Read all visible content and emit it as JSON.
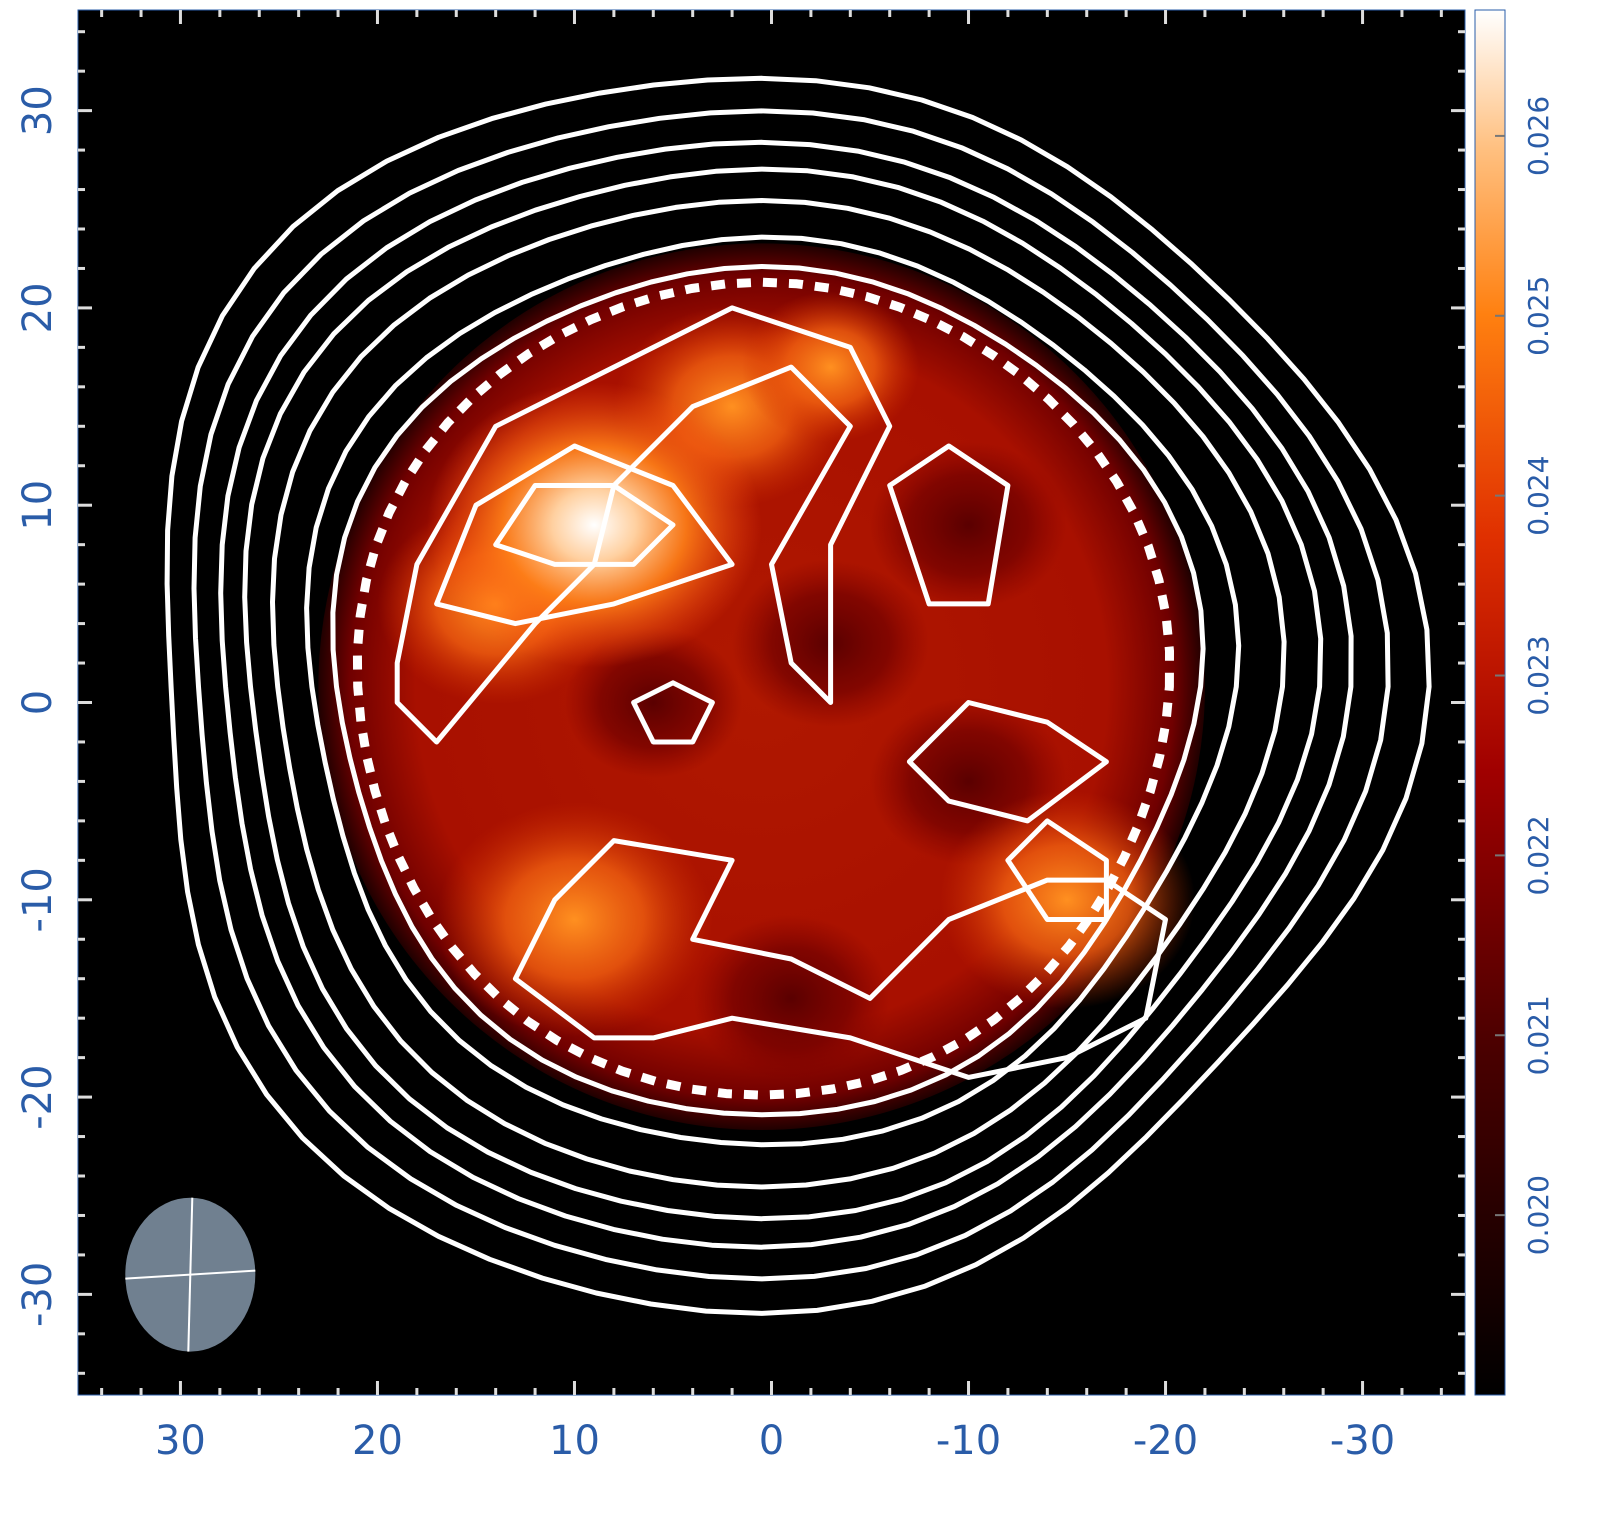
{
  "chart_data": {
    "type": "heatmap",
    "xlim": [
      35.2,
      -35.2
    ],
    "ylim": [
      -35.1,
      35.1
    ],
    "xticks": [
      30,
      20,
      10,
      0,
      -10,
      -20,
      -30
    ],
    "yticks": [
      30,
      20,
      10,
      0,
      -10,
      -20,
      -30
    ],
    "colorbar": {
      "clim": [
        0.019,
        0.0267
      ],
      "ticks": [
        {
          "value": 0.02,
          "label": "0.020"
        },
        0.021,
        0.022,
        0.023,
        0.024,
        0.025,
        0.026
      ]
    }
  }
}
